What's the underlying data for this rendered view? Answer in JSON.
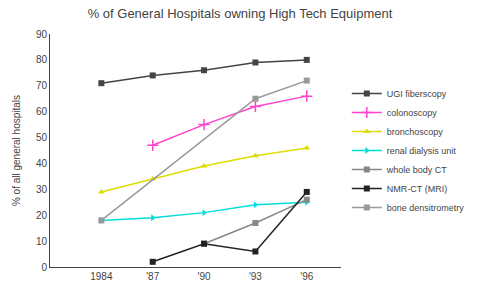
{
  "chart_data": {
    "type": "line",
    "title": "% of General Hospitals owning High Tech Equipment",
    "ylabel": "% of all general hospitals",
    "x": [
      1984,
      1987,
      1990,
      1993,
      1996
    ],
    "xlim": [
      1981,
      1998
    ],
    "xticks": [
      1984,
      {
        "value": 1987,
        "label": "'87"
      },
      {
        "value": 1990,
        "label": "'90"
      },
      {
        "value": 1993,
        "label": "'93"
      },
      {
        "value": 1996,
        "label": "'96"
      }
    ],
    "ylim": [
      0,
      90
    ],
    "yticks": [
      0,
      10,
      20,
      30,
      40,
      50,
      60,
      70,
      80,
      90
    ],
    "grid": false,
    "legend": "right",
    "series": [
      {
        "name": "UGI fiberscopy",
        "color": "#444444",
        "marker": "square",
        "line_style": "solid",
        "values": [
          71,
          74,
          76,
          79,
          80
        ]
      },
      {
        "name": "colonoscopy",
        "color": "#ff44cc",
        "marker": "plus",
        "line_style": "solid",
        "values": [
          null,
          47,
          55,
          62,
          66
        ]
      },
      {
        "name": "bronchoscopy",
        "color": "#dddd00",
        "marker": "triangle-up",
        "line_style": "solid",
        "values": [
          29,
          34,
          39,
          43,
          46
        ]
      },
      {
        "name": "renal dialysis unit",
        "color": "#00dddd",
        "marker": "triangle-right",
        "line_style": "solid",
        "values": [
          18,
          19,
          21,
          24,
          25
        ]
      },
      {
        "name": "whole body CT",
        "color": "#888888",
        "marker": "square",
        "line_style": "solid",
        "values": [
          null,
          null,
          9,
          17,
          26
        ]
      },
      {
        "name": "NMR-CT (MRI)",
        "color": "#222222",
        "marker": "square",
        "line_style": "solid",
        "values": [
          null,
          2,
          9,
          6,
          29
        ]
      },
      {
        "name": "bone densitrometry",
        "color": "#999999",
        "marker": "square",
        "line_style": "solid",
        "values": [
          18,
          null,
          null,
          65,
          72
        ]
      }
    ]
  }
}
